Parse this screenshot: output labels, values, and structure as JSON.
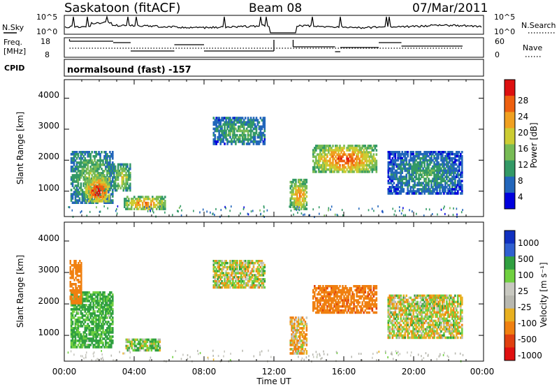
{
  "header": {
    "station": "Saskatoon (fitACF)",
    "beam": "Beam 08",
    "date": "07/Mar/2011"
  },
  "noise_panel": {
    "left_label": "N.Sky",
    "left_ticks": [
      "10^5",
      "10^0"
    ],
    "right_label": "N.Search",
    "right_ticks": [
      "10^5",
      "10^0"
    ]
  },
  "freq_panel": {
    "left_label_1": "Freq.",
    "left_label_2": "[MHz]",
    "left_ticks": [
      "18",
      "8"
    ],
    "right_label": "Nave",
    "right_ticks": [
      "60",
      "0"
    ]
  },
  "cpid": {
    "label": "CPID",
    "program": "normalsound (fast) -157"
  },
  "x_axis": {
    "ticks": [
      "00:00",
      "04:00",
      "08:00",
      "12:00",
      "16:00",
      "20:00",
      "00:00"
    ],
    "label": "Time UT"
  },
  "panels": {
    "power": {
      "ylabel": "Slant Range [km]",
      "yticks": [
        "4000",
        "3000",
        "2000",
        "1000"
      ],
      "colorbar_label": "Power [dB]",
      "colorbar_ticks": [
        "28",
        "24",
        "20",
        "16",
        "12",
        "8",
        "4"
      ]
    },
    "velocity": {
      "ylabel": "Slant Range [km]",
      "yticks": [
        "4000",
        "3000",
        "2000",
        "1000"
      ],
      "colorbar_label": "Velocity [m s⁻¹]",
      "colorbar_ticks": [
        "1000",
        "500",
        "100",
        "25",
        "-25",
        "-100",
        "-500",
        "-1000"
      ]
    }
  },
  "colors": {
    "power_scale": [
      "#0000dd",
      "#2266bb",
      "#339966",
      "#77bb55",
      "#cccc33",
      "#f0a020",
      "#ee6010",
      "#dd1010"
    ],
    "velocity_scale": [
      "#1030c0",
      "#3060d0",
      "#30a040",
      "#70d040",
      "#c8c8c0",
      "#b8b8b0",
      "#e8b020",
      "#f08010",
      "#e04010",
      "#e01010"
    ]
  },
  "chart_data": [
    {
      "type": "heatmap",
      "title": "Power",
      "xlabel": "Time UT",
      "ylabel": "Slant Range [km]",
      "xlim": [
        "00:00",
        "24:00"
      ],
      "ylim": [
        180,
        4600
      ],
      "colorbar": {
        "label": "Power [dB]",
        "range": [
          0,
          30
        ]
      },
      "regions": [
        {
          "t0": 0.35,
          "t1": 2.8,
          "r0": 600,
          "r1": 2300,
          "value": 14
        },
        {
          "t0": 1.2,
          "t1": 2.6,
          "r0": 650,
          "r1": 1450,
          "value": 29
        },
        {
          "t0": 2.8,
          "t1": 3.8,
          "r0": 1000,
          "r1": 1900,
          "value": 17
        },
        {
          "t0": 3.4,
          "t1": 5.8,
          "r0": 400,
          "r1": 850,
          "value": 23
        },
        {
          "t0": 8.5,
          "t1": 11.5,
          "r0": 2500,
          "r1": 3400,
          "value": 12
        },
        {
          "t0": 12.9,
          "t1": 13.9,
          "r0": 400,
          "r1": 1400,
          "value": 22
        },
        {
          "t0": 14.2,
          "t1": 17.9,
          "r0": 1600,
          "r1": 2500,
          "value": 25
        },
        {
          "t0": 18.5,
          "t1": 22.8,
          "r0": 900,
          "r1": 2300,
          "value": 10
        }
      ]
    },
    {
      "type": "heatmap",
      "title": "Velocity",
      "xlabel": "Time UT",
      "ylabel": "Slant Range [km]",
      "xlim": [
        "00:00",
        "24:00"
      ],
      "ylim": [
        180,
        4600
      ],
      "colorbar": {
        "label": "Velocity [m s⁻¹]",
        "range": [
          -1000,
          1000
        ]
      },
      "regions": [
        {
          "t0": 0.35,
          "t1": 2.8,
          "r0": 600,
          "r1": 2400,
          "value": 150
        },
        {
          "t0": 0.3,
          "t1": 1.0,
          "r0": 2000,
          "r1": 3400,
          "value": -300
        },
        {
          "t0": 3.5,
          "t1": 5.5,
          "r0": 500,
          "r1": 900,
          "value": 60
        },
        {
          "t0": 8.5,
          "t1": 11.5,
          "r0": 2500,
          "r1": 3400,
          "value": 0
        },
        {
          "t0": 12.9,
          "t1": 13.9,
          "r0": 400,
          "r1": 1600,
          "value": -80
        },
        {
          "t0": 14.2,
          "t1": 17.9,
          "r0": 1700,
          "r1": 2600,
          "value": -400
        },
        {
          "t0": 18.5,
          "t1": 22.8,
          "r0": 900,
          "r1": 2300,
          "value": 0
        }
      ]
    }
  ]
}
